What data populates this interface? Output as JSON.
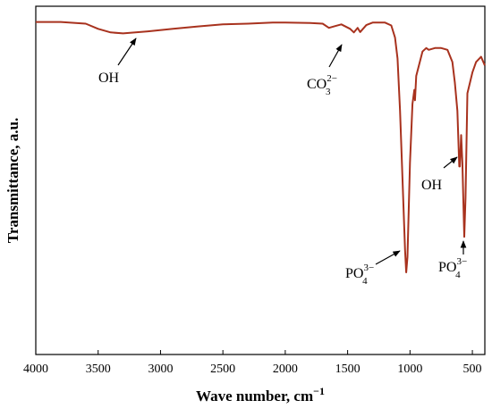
{
  "chart_data": {
    "type": "line",
    "xlabel": "Wave number, cm",
    "xlabel_sup": "−1",
    "ylabel": "Transmittance, a.u.",
    "xlim": [
      4000,
      400
    ],
    "xticks": [
      4000,
      3500,
      3000,
      2500,
      2000,
      1500,
      1000,
      500
    ],
    "ylim": [
      0,
      100
    ],
    "x": [
      4000,
      3800,
      3600,
      3500,
      3400,
      3300,
      3100,
      2900,
      2700,
      2500,
      2300,
      2100,
      2000,
      1800,
      1700,
      1650,
      1600,
      1550,
      1480,
      1450,
      1420,
      1400,
      1350,
      1300,
      1200,
      1150,
      1120,
      1100,
      1080,
      1060,
      1040,
      1030,
      1020,
      1000,
      980,
      965,
      960,
      950,
      900,
      870,
      850,
      800,
      750,
      700,
      660,
      640,
      620,
      605,
      600,
      590,
      580,
      565,
      555,
      540,
      500,
      470,
      430,
      400
    ],
    "series": [
      {
        "color": "#a8321e",
        "values": [
          95.5,
          95.5,
          95.0,
          93.5,
          92.5,
          92.2,
          92.8,
          93.5,
          94.2,
          94.8,
          95.0,
          95.3,
          95.3,
          95.2,
          95.0,
          93.8,
          94.3,
          94.8,
          93.5,
          92.5,
          93.8,
          92.6,
          94.6,
          95.3,
          95.3,
          94.5,
          91,
          85,
          70,
          50,
          30,
          23.6,
          28,
          55,
          72,
          76,
          73,
          80,
          87,
          88,
          87.5,
          88,
          88,
          87.5,
          84,
          78,
          70,
          54,
          54,
          63,
          55,
          33.8,
          45,
          75,
          81,
          84,
          85.5,
          83
        ]
      }
    ],
    "annotations": [
      {
        "text": "OH"
      },
      {
        "text": "CO",
        "sub": "3",
        "sup": "2−"
      },
      {
        "text": "PO",
        "sub": "4",
        "sup": "3−"
      },
      {
        "text": "OH"
      },
      {
        "text": "PO",
        "sub": "4",
        "sup": "3−"
      }
    ]
  }
}
